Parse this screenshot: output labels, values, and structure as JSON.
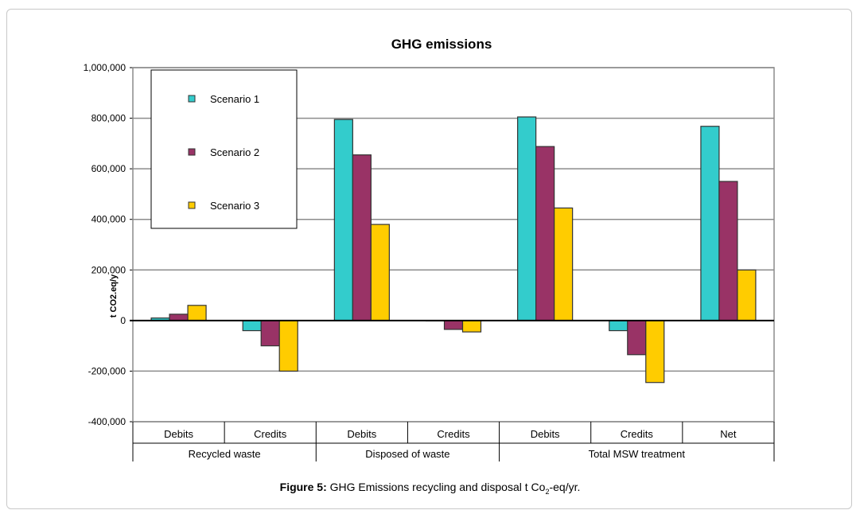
{
  "chart_data": {
    "type": "bar",
    "title": "GHG emissions",
    "ylabel": "t CO2.eq/y",
    "ylim": [
      -400000,
      1000000
    ],
    "yticks": [
      1000000,
      800000,
      600000,
      400000,
      200000,
      0,
      -200000,
      -400000
    ],
    "ytick_labels": [
      "1,000,000",
      "800,000",
      "600,000",
      "400,000",
      "200,000",
      "0",
      "-200,000",
      "-400,000"
    ],
    "categories": [
      "Debits",
      "Credits",
      "Debits",
      "Credits",
      "Debits",
      "Credits",
      "Net"
    ],
    "groups": [
      {
        "label": "Recycled waste",
        "span": 2
      },
      {
        "label": "Disposed of waste",
        "span": 2
      },
      {
        "label": "Total MSW treatment",
        "span": 3
      }
    ],
    "series": [
      {
        "name": "Scenario 1",
        "color": "#33cccc",
        "values": [
          10000,
          -40000,
          795000,
          0,
          805000,
          -40000,
          768000
        ]
      },
      {
        "name": "Scenario 2",
        "color": "#993366",
        "values": [
          25000,
          -100000,
          655000,
          -35000,
          688000,
          -135000,
          550000
        ]
      },
      {
        "name": "Scenario 3",
        "color": "#ffcc00",
        "values": [
          60000,
          -200000,
          380000,
          -45000,
          445000,
          -245000,
          200000
        ]
      }
    ],
    "legend_position": "top-left"
  },
  "caption": {
    "label": "Figure 5:",
    "text_before_sub": "GHG Emissions recycling and disposal t Co",
    "sub": "2",
    "text_after_sub": "-eq/yr."
  }
}
